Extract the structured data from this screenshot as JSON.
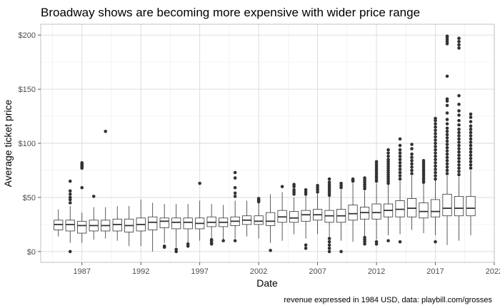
{
  "chart_data": {
    "type": "boxplot",
    "title": "Broadway shows are becoming more expensive with wider price range",
    "xlabel": "Date",
    "ylabel": "Average ticket price",
    "caption": "revenue expressed in 1984 USD, data: playbill.com/grosses",
    "x_ticks": [
      "1987",
      "1992",
      "1997",
      "2002",
      "2007",
      "2012",
      "2017",
      "2022"
    ],
    "y_ticks": [
      "$0",
      "$50",
      "$100",
      "$150",
      "$200"
    ],
    "xlim": [
      1983.5,
      2022
    ],
    "ylim": [
      -10,
      210
    ],
    "grid": true,
    "theme": "light-gray-grid",
    "box_fill": "#ffffff",
    "box_stroke": "#333333",
    "outlier_color": "#333333",
    "boxes": [
      {
        "year": 1985,
        "lower_whisker": 14,
        "q1": 20,
        "median": 25,
        "q3": 29,
        "upper_whisker": 39,
        "outliers": []
      },
      {
        "year": 1986,
        "lower_whisker": 8,
        "q1": 19,
        "median": 25,
        "q3": 29,
        "upper_whisker": 42,
        "outliers": [
          0,
          45,
          48,
          50,
          53,
          56,
          65
        ]
      },
      {
        "year": 1987,
        "lower_whisker": 8,
        "q1": 17,
        "median": 24,
        "q3": 28,
        "upper_whisker": 36,
        "outliers": [
          59,
          77,
          78,
          79,
          80,
          81,
          82
        ]
      },
      {
        "year": 1988,
        "lower_whisker": 11,
        "q1": 19,
        "median": 24,
        "q3": 29,
        "upper_whisker": 41,
        "outliers": [
          51
        ]
      },
      {
        "year": 1989,
        "lower_whisker": 12,
        "q1": 19,
        "median": 24,
        "q3": 29,
        "upper_whisker": 41,
        "outliers": [
          111
        ]
      },
      {
        "year": 1990,
        "lower_whisker": 10,
        "q1": 19,
        "median": 25,
        "q3": 30,
        "upper_whisker": 42
      },
      {
        "year": 1991,
        "lower_whisker": 5,
        "q1": 18,
        "median": 24,
        "q3": 30,
        "upper_whisker": 42
      },
      {
        "year": 1992,
        "lower_whisker": 5,
        "q1": 19,
        "median": 25,
        "q3": 31,
        "upper_whisker": 48
      },
      {
        "year": 1993,
        "lower_whisker": 0,
        "q1": 20,
        "median": 27,
        "q3": 32,
        "upper_whisker": 45
      },
      {
        "year": 1994,
        "lower_whisker": 8,
        "q1": 22,
        "median": 28,
        "q3": 31,
        "upper_whisker": 44,
        "outliers": [
          5,
          4
        ]
      },
      {
        "year": 1995,
        "lower_whisker": 4,
        "q1": 21,
        "median": 27,
        "q3": 31,
        "upper_whisker": 44,
        "outliers": [
          0,
          2
        ]
      },
      {
        "year": 1996,
        "lower_whisker": 6,
        "q1": 21,
        "median": 27,
        "q3": 31,
        "upper_whisker": 44,
        "outliers": [
          5,
          7
        ]
      },
      {
        "year": 1997,
        "lower_whisker": 10,
        "q1": 21,
        "median": 26,
        "q3": 31,
        "upper_whisker": 47,
        "outliers": [
          63
        ]
      },
      {
        "year": 1998,
        "lower_whisker": 11,
        "q1": 23,
        "median": 27,
        "q3": 32,
        "upper_whisker": 44,
        "outliers": [
          7,
          8,
          10,
          11
        ]
      },
      {
        "year": 1999,
        "lower_whisker": 11,
        "q1": 23,
        "median": 27,
        "q3": 31,
        "upper_whisker": 43,
        "outliers": [
          10
        ]
      },
      {
        "year": 2000,
        "lower_whisker": 12,
        "q1": 24,
        "median": 28,
        "q3": 32,
        "upper_whisker": 47,
        "outliers": [
          10,
          51,
          54,
          59,
          68,
          73
        ]
      },
      {
        "year": 2001,
        "lower_whisker": 14,
        "q1": 25,
        "median": 29,
        "q3": 33,
        "upper_whisker": 47
      },
      {
        "year": 2002,
        "lower_whisker": 12,
        "q1": 25,
        "median": 28,
        "q3": 33,
        "upper_whisker": 45,
        "outliers": [
          46,
          47,
          48,
          49
        ]
      },
      {
        "year": 2003,
        "lower_whisker": 8,
        "q1": 24,
        "median": 28,
        "q3": 36,
        "upper_whisker": 53,
        "outliers": [
          1
        ]
      },
      {
        "year": 2004,
        "lower_whisker": 10,
        "q1": 27,
        "median": 32,
        "q3": 38,
        "upper_whisker": 55,
        "outliers": [
          60
        ]
      },
      {
        "year": 2005,
        "lower_whisker": 16,
        "q1": 27,
        "median": 31,
        "q3": 37,
        "upper_whisker": 50,
        "outliers": [
          53,
          55,
          57,
          60,
          62
        ]
      },
      {
        "year": 2006,
        "lower_whisker": 12,
        "q1": 28,
        "median": 34,
        "q3": 38,
        "upper_whisker": 52,
        "outliers": [
          3,
          6,
          53,
          55,
          57
        ]
      },
      {
        "year": 2007,
        "lower_whisker": 16,
        "q1": 29,
        "median": 34,
        "q3": 39,
        "upper_whisker": 53,
        "outliers": [
          55,
          57,
          59,
          61
        ]
      },
      {
        "year": 2008,
        "lower_whisker": 12,
        "q1": 27,
        "median": 33,
        "q3": 38,
        "upper_whisker": 51,
        "outliers": [
          0,
          3,
          6,
          9,
          12,
          52,
          54,
          56,
          58,
          60,
          62,
          64,
          67
        ]
      },
      {
        "year": 2009,
        "lower_whisker": 10,
        "q1": 27,
        "median": 33,
        "q3": 39,
        "upper_whisker": 57,
        "outliers": [
          0,
          59,
          61,
          63
        ]
      },
      {
        "year": 2010,
        "lower_whisker": 9,
        "q1": 29,
        "median": 35,
        "q3": 43,
        "upper_whisker": 63,
        "outliers": [
          65,
          66,
          67
        ]
      },
      {
        "year": 2011,
        "lower_whisker": 14,
        "q1": 30,
        "median": 36,
        "q3": 41,
        "upper_whisker": 56,
        "outliers": [
          7,
          9,
          11,
          13,
          58,
          60,
          62,
          64,
          66,
          68
        ]
      },
      {
        "year": 2012,
        "lower_whisker": 11,
        "q1": 30,
        "median": 36,
        "q3": 44,
        "upper_whisker": 63,
        "outliers": [
          7,
          9,
          65,
          67,
          69,
          71,
          73,
          75,
          77,
          79,
          81,
          83
        ]
      },
      {
        "year": 2013,
        "lower_whisker": 15,
        "q1": 32,
        "median": 38,
        "q3": 44,
        "upper_whisker": 62,
        "outliers": [
          10,
          63,
          65,
          67,
          69,
          71,
          73,
          75,
          77,
          79,
          81,
          83,
          85,
          88,
          91,
          94
        ]
      },
      {
        "year": 2014,
        "lower_whisker": 16,
        "q1": 32,
        "median": 39,
        "q3": 47,
        "upper_whisker": 65,
        "outliers": [
          9,
          67,
          70,
          73,
          76,
          79,
          82,
          85,
          88,
          91,
          94,
          98,
          104
        ]
      },
      {
        "year": 2015,
        "lower_whisker": 20,
        "q1": 32,
        "median": 40,
        "q3": 49,
        "upper_whisker": 70,
        "outliers": [
          72,
          75,
          78,
          81,
          84,
          87,
          90,
          95,
          99
        ]
      },
      {
        "year": 2016,
        "lower_whisker": 17,
        "q1": 31,
        "median": 37,
        "q3": 45,
        "upper_whisker": 63,
        "outliers": [
          64,
          66,
          68,
          70,
          72,
          74,
          76,
          78,
          80,
          82,
          84
        ]
      },
      {
        "year": 2017,
        "lower_whisker": 15,
        "q1": 32,
        "median": 37,
        "q3": 48,
        "upper_whisker": 66,
        "outliers": [
          9,
          67,
          70,
          73,
          76,
          79,
          82,
          85,
          88,
          91,
          94,
          97,
          100,
          103,
          106,
          109,
          112,
          115,
          118,
          121,
          123
        ]
      },
      {
        "year": 2018,
        "lower_whisker": 6,
        "q1": 33,
        "median": 40,
        "q3": 53,
        "upper_whisker": 70,
        "outliers": [
          72,
          75,
          78,
          81,
          84,
          87,
          90,
          93,
          96,
          99,
          102,
          105,
          108,
          111,
          114,
          118,
          122,
          128,
          135,
          139,
          141,
          162,
          192,
          194,
          196,
          198,
          199
        ]
      },
      {
        "year": 2019,
        "lower_whisker": 10,
        "q1": 33,
        "median": 40,
        "q3": 51,
        "upper_whisker": 69,
        "outliers": [
          71,
          74,
          77,
          80,
          83,
          86,
          89,
          92,
          95,
          98,
          101,
          104,
          107,
          110,
          113,
          117,
          121,
          126,
          130,
          136,
          144,
          188,
          191,
          194,
          197
        ]
      },
      {
        "year": 2020,
        "lower_whisker": 15,
        "q1": 33,
        "median": 40,
        "q3": 51,
        "upper_whisker": 75,
        "outliers": [
          77,
          80,
          83,
          86,
          89,
          92,
          95,
          98,
          101,
          104,
          107,
          110,
          113,
          116,
          120,
          124,
          127
        ]
      }
    ]
  }
}
